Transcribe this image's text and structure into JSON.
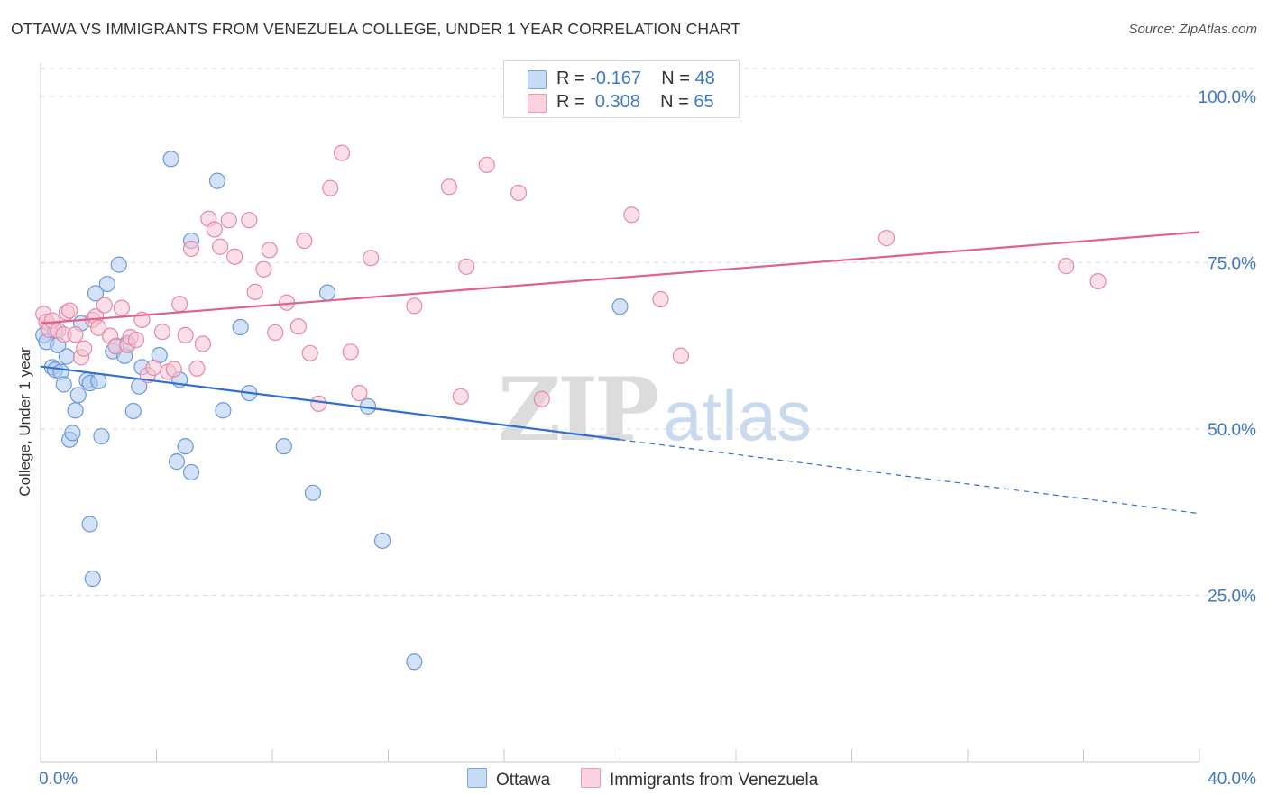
{
  "header": {
    "title": "OTTAWA VS IMMIGRANTS FROM VENEZUELA COLLEGE, UNDER 1 YEAR CORRELATION CHART",
    "source": "Source: ZipAtlas.com"
  },
  "watermark": {
    "zip": "ZIP",
    "atlas": "atlas"
  },
  "legend": {
    "ottawa": {
      "r_label": "R =",
      "r_value": "-0.167",
      "n_label": "N =",
      "n_value": "48"
    },
    "venezuela": {
      "r_label": "R =",
      "r_value": "0.308",
      "n_label": "N =",
      "n_value": "65"
    }
  },
  "bottom_legend": {
    "ottawa": "Ottawa",
    "venezuela": "Immigrants from Venezuela"
  },
  "colors": {
    "ottawa_fill": "#aecbf0",
    "ottawa_stroke": "#6d9ad6",
    "ottawa_line": "#2f6fcf",
    "venezuela_fill": "#f7c4d4",
    "venezuela_stroke": "#e58aa8",
    "venezuela_line": "#e0608e",
    "axis_text": "#3b78c8",
    "grid": "#dddddd"
  },
  "chart_data": {
    "type": "scatter",
    "title": "OTTAWA VS IMMIGRANTS FROM VENEZUELA COLLEGE, UNDER 1 YEAR CORRELATION CHART",
    "xlabel": "",
    "ylabel": "College, Under 1 year",
    "xlim": [
      0,
      40
    ],
    "ylim": [
      0,
      105
    ],
    "x_tick_labels": [
      "0.0%",
      "40.0%"
    ],
    "y_ticks": [
      25,
      50,
      75,
      100
    ],
    "y_tick_labels": [
      "25.0%",
      "50.0%",
      "75.0%",
      "100.0%"
    ],
    "grid": true,
    "legend_position": "top-center",
    "series": [
      {
        "name": "Ottawa",
        "color": "#aecbf0",
        "points": [
          [
            0.1,
            64.1
          ],
          [
            0.2,
            63.1
          ],
          [
            0.4,
            59.3
          ],
          [
            0.5,
            58.9
          ],
          [
            0.6,
            62.6
          ],
          [
            0.7,
            58.6
          ],
          [
            0.8,
            56.7
          ],
          [
            0.9,
            60.9
          ],
          [
            1.0,
            48.4
          ],
          [
            1.1,
            49.4
          ],
          [
            1.2,
            52.8
          ],
          [
            1.3,
            55.1
          ],
          [
            1.4,
            65.9
          ],
          [
            1.6,
            57.3
          ],
          [
            1.7,
            56.9
          ],
          [
            1.7,
            35.7
          ],
          [
            1.8,
            27.5
          ],
          [
            1.9,
            70.4
          ],
          [
            2.0,
            57.2
          ],
          [
            2.1,
            48.9
          ],
          [
            2.3,
            71.8
          ],
          [
            2.5,
            61.7
          ],
          [
            2.6,
            62.5
          ],
          [
            2.7,
            74.7
          ],
          [
            2.9,
            61.0
          ],
          [
            3.2,
            52.7
          ],
          [
            3.4,
            56.4
          ],
          [
            3.5,
            59.3
          ],
          [
            4.1,
            61.1
          ],
          [
            4.5,
            90.6
          ],
          [
            4.7,
            45.1
          ],
          [
            4.8,
            57.4
          ],
          [
            5.0,
            47.4
          ],
          [
            5.2,
            43.5
          ],
          [
            5.2,
            78.3
          ],
          [
            6.1,
            87.3
          ],
          [
            6.3,
            52.8
          ],
          [
            6.9,
            65.3
          ],
          [
            7.2,
            55.4
          ],
          [
            8.4,
            47.4
          ],
          [
            9.4,
            40.4
          ],
          [
            9.9,
            70.5
          ],
          [
            11.3,
            53.4
          ],
          [
            11.8,
            33.2
          ],
          [
            12.9,
            15.0
          ],
          [
            20.0,
            68.4
          ],
          [
            0.5,
            64.8
          ],
          [
            3.0,
            62.9
          ]
        ],
        "trend": {
          "x": [
            0,
            20.0
          ],
          "y": [
            59.4,
            48.4
          ],
          "dashed_extension": {
            "x": [
              20.0,
              40.0
            ],
            "y": [
              48.4,
              37.3
            ]
          }
        }
      },
      {
        "name": "Immigrants from Venezuela",
        "color": "#f7c4d4",
        "points": [
          [
            0.1,
            67.3
          ],
          [
            0.2,
            66.1
          ],
          [
            0.3,
            64.9
          ],
          [
            0.4,
            66.3
          ],
          [
            0.6,
            64.8
          ],
          [
            0.8,
            64.2
          ],
          [
            0.9,
            67.5
          ],
          [
            1.0,
            67.8
          ],
          [
            1.2,
            64.2
          ],
          [
            1.4,
            60.8
          ],
          [
            1.5,
            62.1
          ],
          [
            1.8,
            66.4
          ],
          [
            1.9,
            66.9
          ],
          [
            2.0,
            65.2
          ],
          [
            2.2,
            68.6
          ],
          [
            2.4,
            64.0
          ],
          [
            2.6,
            62.4
          ],
          [
            2.8,
            68.2
          ],
          [
            3.0,
            62.6
          ],
          [
            3.1,
            63.8
          ],
          [
            3.3,
            63.4
          ],
          [
            3.5,
            66.4
          ],
          [
            3.7,
            58.1
          ],
          [
            3.9,
            59.2
          ],
          [
            4.2,
            64.6
          ],
          [
            4.4,
            58.6
          ],
          [
            4.6,
            59.0
          ],
          [
            4.8,
            68.8
          ],
          [
            5.0,
            64.1
          ],
          [
            5.2,
            77.1
          ],
          [
            5.4,
            59.1
          ],
          [
            5.6,
            62.8
          ],
          [
            5.8,
            81.6
          ],
          [
            6.0,
            80.0
          ],
          [
            6.2,
            77.4
          ],
          [
            6.5,
            81.4
          ],
          [
            6.7,
            75.9
          ],
          [
            7.2,
            81.4
          ],
          [
            7.4,
            70.6
          ],
          [
            7.7,
            74.0
          ],
          [
            7.9,
            76.9
          ],
          [
            8.1,
            64.5
          ],
          [
            8.5,
            69.0
          ],
          [
            8.9,
            65.4
          ],
          [
            9.1,
            78.3
          ],
          [
            9.3,
            61.4
          ],
          [
            9.6,
            53.8
          ],
          [
            10.0,
            86.2
          ],
          [
            10.4,
            91.5
          ],
          [
            10.7,
            61.6
          ],
          [
            11.0,
            55.4
          ],
          [
            11.4,
            75.7
          ],
          [
            12.9,
            68.5
          ],
          [
            14.1,
            86.4
          ],
          [
            14.5,
            54.9
          ],
          [
            14.7,
            74.4
          ],
          [
            15.4,
            89.7
          ],
          [
            16.5,
            85.5
          ],
          [
            17.3,
            54.5
          ],
          [
            20.4,
            82.2
          ],
          [
            21.4,
            69.5
          ],
          [
            22.1,
            61.0
          ],
          [
            29.2,
            78.7
          ],
          [
            35.4,
            74.5
          ],
          [
            36.5,
            72.2
          ]
        ],
        "trend": {
          "x": [
            0,
            40.0
          ],
          "y": [
            65.9,
            79.6
          ]
        }
      }
    ]
  }
}
